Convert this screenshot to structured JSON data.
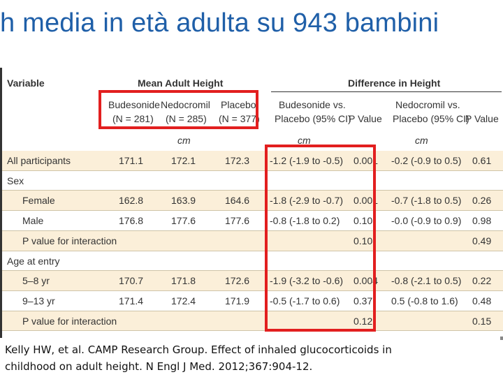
{
  "title": "h media in età adulta su 943 bambini",
  "table": {
    "col_variable": "Variable",
    "col_mean_height": "Mean Adult Height",
    "col_diff_height": "Difference in Height",
    "sub_budesonide": [
      "Budesonide",
      "(N = 281)"
    ],
    "sub_nedocromil": [
      "Nedocromil",
      "(N = 285)"
    ],
    "sub_placebo": [
      "Placebo",
      "(N = 377)"
    ],
    "sub_bud_vs_placebo": [
      "Budesonide vs.",
      "Placebo (95% CI)"
    ],
    "sub_pvalue": "P Value",
    "sub_ned_vs_placebo": [
      "Nedocromil vs.",
      "Placebo (95% CI)"
    ],
    "sub_pvalue2": "P Value",
    "unit_cm": "cm",
    "rows": [
      {
        "label": "All participants",
        "indent": 0,
        "bud": "171.1",
        "ned": "172.1",
        "pla": "172.3",
        "d1": "-1.2 (-1.9 to -0.5)",
        "p1": "0.001",
        "d2": "-0.2 (-0.9 to 0.5)",
        "p2": "0.61"
      },
      {
        "label": "Sex",
        "indent": 0,
        "bud": "",
        "ned": "",
        "pla": "",
        "d1": "",
        "p1": "",
        "d2": "",
        "p2": ""
      },
      {
        "label": "Female",
        "indent": 1,
        "bud": "162.8",
        "ned": "163.9",
        "pla": "164.6",
        "d1": "-1.8 (-2.9 to -0.7)",
        "p1": "0.001",
        "d2": "-0.7 (-1.8 to 0.5)",
        "p2": "0.26"
      },
      {
        "label": "Male",
        "indent": 1,
        "bud": "176.8",
        "ned": "177.6",
        "pla": "177.6",
        "d1": "-0.8 (-1.8 to 0.2)",
        "p1": "0.10",
        "d2": "-0.0 (-0.9 to 0.9)",
        "p2": "0.98"
      },
      {
        "label": "P value for interaction",
        "indent": 1,
        "bud": "",
        "ned": "",
        "pla": "",
        "d1": "",
        "p1": "0.10",
        "d2": "",
        "p2": "0.49"
      },
      {
        "label": "Age at entry",
        "indent": 0,
        "bud": "",
        "ned": "",
        "pla": "",
        "d1": "",
        "p1": "",
        "d2": "",
        "p2": ""
      },
      {
        "label": "5–8 yr",
        "indent": 1,
        "bud": "170.7",
        "ned": "171.8",
        "pla": "172.6",
        "d1": "-1.9 (-3.2 to -0.6)",
        "p1": "0.004",
        "d2": "-0.8 (-2.1 to 0.5)",
        "p2": "0.22"
      },
      {
        "label": "9–13 yr",
        "indent": 1,
        "bud": "171.4",
        "ned": "172.4",
        "pla": "171.9",
        "d1": "-0.5 (-1.7 to 0.6)",
        "p1": "0.37",
        "d2": "0.5 (-0.8 to 1.6)",
        "p2": "0.48"
      },
      {
        "label": "P value for interaction",
        "indent": 1,
        "bud": "",
        "ned": "",
        "pla": "",
        "d1": "",
        "p1": "0.12",
        "d2": "",
        "p2": "0.15"
      }
    ]
  },
  "citation": {
    "line1": "Kelly HW, et al.  CAMP Research Group. Effect of inhaled glucocorticoids in",
    "line2": "childhood on adult height. N Engl J Med. 2012;367:904-12."
  },
  "colors": {
    "title": "#1f5fa8",
    "highlight_box": "#e21f1f",
    "row_band": "#fbefd9"
  }
}
